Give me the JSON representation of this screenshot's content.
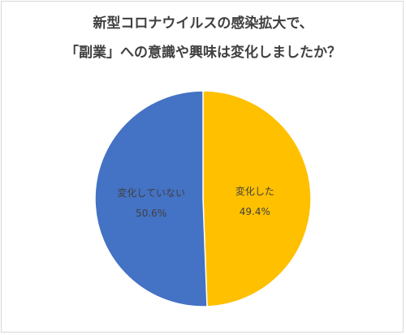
{
  "chart_data": {
    "type": "pie",
    "title_lines": [
      "新型コロナウイルスの感染拡大で、",
      "「副業」への意識や興味は変化しましたか？"
    ],
    "start_angle_deg": 0,
    "direction": "clockwise",
    "slices": [
      {
        "label": "変化した",
        "value": 49.4,
        "value_text": "49.4%",
        "color": "#FFC000"
      },
      {
        "label": "変化していない",
        "value": 50.6,
        "value_text": "50.6%",
        "color": "#4472C4"
      }
    ]
  }
}
